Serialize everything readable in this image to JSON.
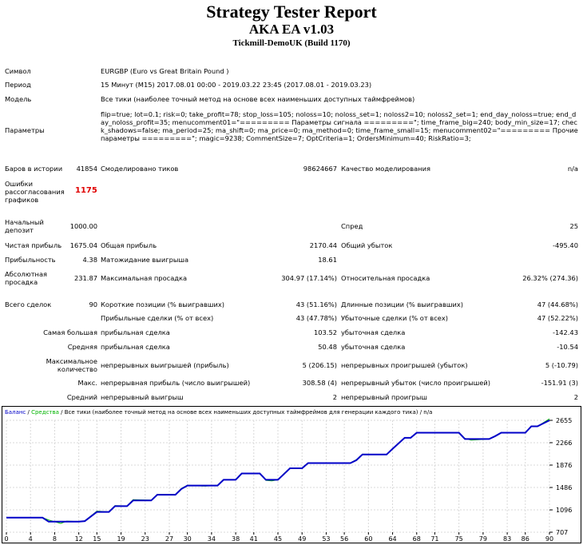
{
  "report": {
    "title": "Strategy Tester Report",
    "ea": "AKA EA v1.03",
    "server": "Tickmill-DemoUK (Build 1170)"
  },
  "info": {
    "symbol_label": "Символ",
    "symbol_value": "EURGBP (Euro vs Great Britain Pound )",
    "period_label": "Период",
    "period_value": "15 Минут (M15) 2017.08.01 00:00 - 2019.03.22 23:45 (2017.08.01 - 2019.03.23)",
    "model_label": "Модель",
    "model_value": "Все тики (наиболее точный метод на основе всех наименьших доступных таймфреймов)",
    "params_label": "Параметры",
    "params_value": "flip=true; lot=0.1; risk=0; take_profit=78; stop_loss=105; noloss=10; noloss_set=1; noloss2=10; noloss2_set=1; end_day_noloss=true; end_day_noloss_profit=35; menucomment01=\"========= Параметры сигнала =========\"; time_frame_big=240; body_min_size=17; check_shadows=false; ma_period=25; ma_shift=0; ma_price=0; ma_method=0; time_frame_small=15; menucomment02=\"========= Прочие параметры =========\"; magic=9238; CommentSize=7; OptCriteria=1; OrdersMinimum=40; RiskRatio=3;"
  },
  "stats": {
    "bars_label": "Баров в истории",
    "bars_value": "41854",
    "ticks_label": "Смоделировано тиков",
    "ticks_value": "98624667",
    "quality_label": "Качество моделирования",
    "quality_value": "n/a",
    "errors_label_1": "Ошибки",
    "errors_label_2": "рассогласования",
    "errors_label_3": "графиков",
    "errors_value": "1175",
    "deposit_label_1": "Начальный",
    "deposit_label_2": "депозит",
    "deposit_value": "1000.00",
    "spread_label": "Спред",
    "spread_value": "25",
    "net_label": "Чистая прибыль",
    "net_value": "1675.04",
    "gross_profit_label": "Общая прибыль",
    "gross_profit_value": "2170.44",
    "gross_loss_label": "Общий убыток",
    "gross_loss_value": "-495.40",
    "pf_label": "Прибыльность",
    "pf_value": "4.38",
    "payoff_label": "Матожидание выигрыша",
    "payoff_value": "18.61",
    "abs_dd_label_1": "Абсолютная",
    "abs_dd_label_2": "просадка",
    "abs_dd_value": "231.87",
    "max_dd_label": "Максимальная просадка",
    "max_dd_value": "304.97 (17.14%)",
    "rel_dd_label": "Относительная просадка",
    "rel_dd_value": "26.32% (274.36)",
    "total_label": "Всего сделок",
    "total_value": "90",
    "short_label": "Короткие позиции (% выигравших)",
    "short_value": "43 (51.16%)",
    "long_label": "Длинные позиции (% выигравших)",
    "long_value": "47 (44.68%)",
    "profit_trades_label": "Прибыльные сделки (% от всех)",
    "profit_trades_value": "43 (47.78%)",
    "loss_trades_label": "Убыточные сделки (% от всех)",
    "loss_trades_value": "47 (52.22%)",
    "largest_label": "Самая большая",
    "largest_profit_label": "прибыльная сделка",
    "largest_profit_value": "103.52",
    "largest_loss_label": "убыточная сделка",
    "largest_loss_value": "-142.43",
    "avg_label": "Средняя",
    "avg_profit_label": "прибыльная сделка",
    "avg_profit_value": "50.48",
    "avg_loss_label": "убыточная сделка",
    "avg_loss_value": "-10.54",
    "max_label_1": "Максимальное",
    "max_label_2": "количество",
    "max_wins_label": "непрерывных выигрышей (прибыль)",
    "max_wins_value": "5 (206.15)",
    "max_losses_label": "непрерывных проигрышей (убыток)",
    "max_losses_value": "5 (-10.79)",
    "maxc_label": "Макс.",
    "maxc_profit_label": "непрерывная прибыль (число выигрышей)",
    "maxc_profit_value": "308.58 (4)",
    "maxc_loss_label": "непрерывный убыток (число проигрышей)",
    "maxc_loss_value": "-151.91 (3)",
    "avgc_label": "Средний",
    "avgc_win_label": "непрерывный выигрыш",
    "avgc_win_value": "2",
    "avgc_loss_label": "непрерывный проигрыш",
    "avgc_loss_value": "2"
  },
  "chart_data": {
    "type": "line",
    "title_balance": "Баланс",
    "title_sep": " / ",
    "title_equity": "Средства",
    "title_rest": " / Все тики (наиболее точный метод на основе всех наименьших доступных таймфреймов для генерации каждого тика) / n/a",
    "x_ticks": [
      "0",
      "4",
      "8",
      "12",
      "15",
      "19",
      "23",
      "27",
      "30",
      "34",
      "38",
      "41",
      "45",
      "49",
      "53",
      "56",
      "60",
      "64",
      "68",
      "71",
      "75",
      "79",
      "83",
      "86",
      "90"
    ],
    "y_ticks": [
      "2655",
      "2266",
      "1876",
      "1486",
      "1096",
      "707"
    ],
    "ylim": [
      707,
      2655
    ],
    "xlim": [
      0,
      90
    ],
    "colors": {
      "balance": "#0000c8",
      "equity": "#00b400"
    },
    "balance": [
      [
        0,
        960
      ],
      [
        6,
        960
      ],
      [
        7,
        890
      ],
      [
        12,
        890
      ],
      [
        13,
        900
      ],
      [
        15,
        1060
      ],
      [
        17,
        1060
      ],
      [
        18,
        1160
      ],
      [
        20,
        1160
      ],
      [
        21,
        1260
      ],
      [
        24,
        1260
      ],
      [
        25,
        1360
      ],
      [
        28,
        1360
      ],
      [
        29,
        1460
      ],
      [
        30,
        1520
      ],
      [
        35,
        1520
      ],
      [
        36,
        1620
      ],
      [
        38,
        1620
      ],
      [
        39,
        1730
      ],
      [
        42,
        1730
      ],
      [
        43,
        1620
      ],
      [
        45,
        1620
      ],
      [
        46,
        1720
      ],
      [
        47,
        1820
      ],
      [
        49,
        1820
      ],
      [
        50,
        1910
      ],
      [
        57,
        1910
      ],
      [
        58,
        1960
      ],
      [
        59,
        2060
      ],
      [
        63,
        2060
      ],
      [
        64,
        2160
      ],
      [
        66,
        2350
      ],
      [
        67,
        2350
      ],
      [
        68,
        2440
      ],
      [
        75,
        2440
      ],
      [
        76,
        2330
      ],
      [
        80,
        2330
      ],
      [
        81,
        2380
      ],
      [
        82,
        2440
      ],
      [
        86,
        2440
      ],
      [
        87,
        2550
      ],
      [
        88,
        2550
      ],
      [
        90,
        2655
      ]
    ],
    "equity": [
      [
        0,
        960
      ],
      [
        6,
        960
      ],
      [
        7,
        920
      ],
      [
        9,
        860
      ],
      [
        10,
        900
      ],
      [
        12,
        890
      ],
      [
        13,
        905
      ],
      [
        15,
        1075
      ],
      [
        17,
        1060
      ],
      [
        18,
        1170
      ],
      [
        20,
        1165
      ],
      [
        21,
        1275
      ],
      [
        24,
        1265
      ],
      [
        25,
        1365
      ],
      [
        28,
        1365
      ],
      [
        29,
        1470
      ],
      [
        30,
        1525
      ],
      [
        33,
        1510
      ],
      [
        35,
        1525
      ],
      [
        36,
        1625
      ],
      [
        38,
        1625
      ],
      [
        39,
        1735
      ],
      [
        42,
        1735
      ],
      [
        43,
        1610
      ],
      [
        44,
        1600
      ],
      [
        45,
        1620
      ],
      [
        46,
        1730
      ],
      [
        47,
        1825
      ],
      [
        49,
        1825
      ],
      [
        50,
        1915
      ],
      [
        57,
        1915
      ],
      [
        58,
        1970
      ],
      [
        59,
        2065
      ],
      [
        63,
        2060
      ],
      [
        64,
        2165
      ],
      [
        66,
        2355
      ],
      [
        67,
        2355
      ],
      [
        68,
        2445
      ],
      [
        75,
        2445
      ],
      [
        76,
        2340
      ],
      [
        77,
        2310
      ],
      [
        80,
        2330
      ],
      [
        81,
        2385
      ],
      [
        82,
        2445
      ],
      [
        86,
        2445
      ],
      [
        87,
        2555
      ],
      [
        88,
        2550
      ],
      [
        90,
        2680
      ]
    ]
  }
}
